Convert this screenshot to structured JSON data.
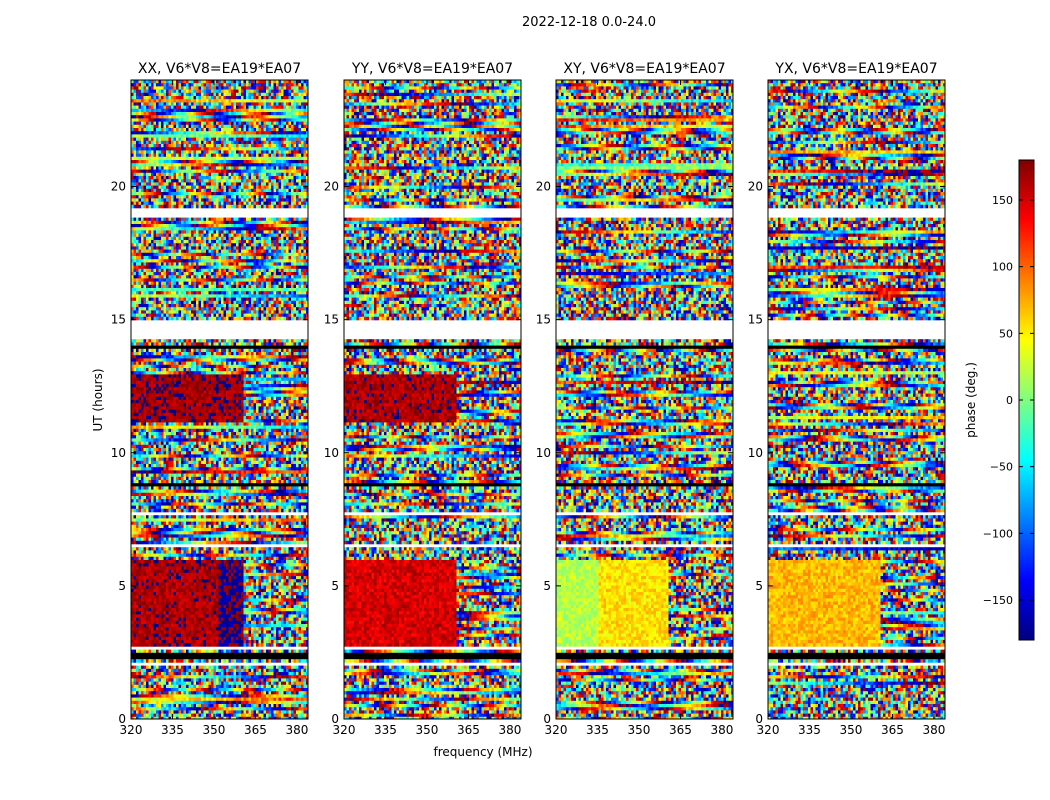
{
  "figure": {
    "suptitle": "2022-12-18 0.0-24.0",
    "xlabel": "frequency (MHz)",
    "ylabel": "UT (hours)"
  },
  "colorbar": {
    "label": "phase (deg.)",
    "ticks": [
      150,
      100,
      50,
      0,
      -50,
      -100,
      -150
    ],
    "tick_labels": [
      "150",
      "100",
      "50",
      "0",
      "−50",
      "−100",
      "−150"
    ],
    "range": [
      -180,
      180
    ],
    "colormap": [
      "#00007f",
      "#0000ff",
      "#007fff",
      "#00ffff",
      "#7fff7f",
      "#ffff00",
      "#ff7f00",
      "#ff0000",
      "#7f0000"
    ]
  },
  "chart_data": [
    {
      "type": "heatmap",
      "title": "XX, V6*V8=EA19*EA07",
      "xlabel": "frequency (MHz)",
      "ylabel": "UT (hours)",
      "xlim": [
        320,
        384
      ],
      "ylim": [
        0,
        24
      ],
      "xticks": [
        320,
        335,
        350,
        365,
        380
      ],
      "yticks": [
        0,
        5,
        10,
        15,
        20
      ],
      "dominant_phase_regions": [
        {
          "ut": [
            2.7,
            6.0
          ],
          "freq": [
            320,
            352
          ],
          "phase_deg": 165
        },
        {
          "ut": [
            2.7,
            6.0
          ],
          "freq": [
            352,
            361
          ],
          "phase_deg": -175
        },
        {
          "ut": [
            11.1,
            12.9
          ],
          "freq": [
            320,
            361
          ],
          "phase_deg": 170
        }
      ]
    },
    {
      "type": "heatmap",
      "title": "YY, V6*V8=EA19*EA07",
      "xlabel": "frequency (MHz)",
      "ylabel": "UT (hours)",
      "xlim": [
        320,
        384
      ],
      "ylim": [
        0,
        24
      ],
      "xticks": [
        320,
        335,
        350,
        365,
        380
      ],
      "yticks": [
        0,
        5,
        10,
        15,
        20
      ],
      "dominant_phase_regions": [
        {
          "ut": [
            2.7,
            6.0
          ],
          "freq": [
            320,
            361
          ],
          "phase_deg": 150
        },
        {
          "ut": [
            11.1,
            12.9
          ],
          "freq": [
            320,
            361
          ],
          "phase_deg": 165
        }
      ]
    },
    {
      "type": "heatmap",
      "title": "XY, V6*V8=EA19*EA07",
      "xlabel": "frequency (MHz)",
      "ylabel": "UT (hours)",
      "xlim": [
        320,
        384
      ],
      "ylim": [
        0,
        24
      ],
      "xticks": [
        320,
        335,
        350,
        365,
        380
      ],
      "yticks": [
        0,
        5,
        10,
        15,
        20
      ],
      "dominant_phase_regions": [
        {
          "ut": [
            2.7,
            6.0
          ],
          "freq": [
            320,
            335
          ],
          "phase_deg": 20
        },
        {
          "ut": [
            2.7,
            6.0
          ],
          "freq": [
            335,
            361
          ],
          "phase_deg": 55
        }
      ]
    },
    {
      "type": "heatmap",
      "title": "YX, V6*V8=EA19*EA07",
      "xlabel": "frequency (MHz)",
      "ylabel": "UT (hours)",
      "xlim": [
        320,
        384
      ],
      "ylim": [
        0,
        24
      ],
      "xticks": [
        320,
        335,
        350,
        365,
        380
      ],
      "yticks": [
        0,
        5,
        10,
        15,
        20
      ],
      "dominant_phase_regions": [
        {
          "ut": [
            2.7,
            6.0
          ],
          "freq": [
            320,
            361
          ],
          "phase_deg": 70
        }
      ]
    }
  ],
  "blank_ut_bands": [
    [
      2.05,
      2.15
    ],
    [
      2.6,
      2.7
    ],
    [
      6.05,
      6.15
    ],
    [
      6.5,
      6.6
    ],
    [
      7.6,
      7.8
    ],
    [
      14.3,
      15.0
    ],
    [
      18.8,
      19.15
    ],
    [
      19.5,
      19.6
    ]
  ],
  "dark_ut_bands": [
    [
      2.2,
      2.45
    ],
    [
      13.9,
      14.05
    ],
    [
      8.7,
      8.8
    ]
  ]
}
